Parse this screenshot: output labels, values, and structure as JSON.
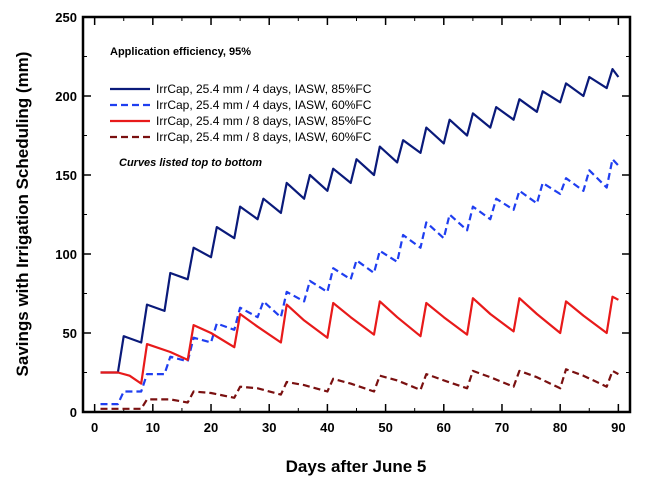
{
  "chart_data": {
    "type": "line",
    "xlabel": "Days after June 5",
    "ylabel": "Savings with Irrigation Scheduling (mm)",
    "xlim": [
      -2,
      92
    ],
    "ylim": [
      0,
      250
    ],
    "xticks": [
      0,
      10,
      20,
      30,
      40,
      50,
      60,
      70,
      80,
      90
    ],
    "yticks": [
      0,
      50,
      100,
      150,
      200,
      250
    ],
    "grid": false,
    "legend_position": "top-left",
    "annotations": [
      {
        "text": "Application efficiency, 95%",
        "style": "bold"
      },
      {
        "text": "Curves listed top to bottom",
        "style": "bold-italic"
      }
    ],
    "series": [
      {
        "name": "IrrCap, 25.4 mm / 4 days, IASW, 85%FC",
        "color": "#0a1a7a",
        "dash": "solid",
        "x": [
          1,
          4,
          5,
          8,
          9,
          12,
          13,
          16,
          17,
          20,
          21,
          24,
          25,
          28,
          29,
          32,
          33,
          36,
          37,
          40,
          41,
          44,
          45,
          48,
          49,
          52,
          53,
          56,
          57,
          60,
          61,
          64,
          65,
          68,
          69,
          72,
          73,
          76,
          77,
          80,
          81,
          84,
          85,
          88,
          89,
          90
        ],
        "y": [
          25,
          25,
          48,
          44,
          68,
          64,
          88,
          84,
          104,
          98,
          117,
          110,
          130,
          122,
          135,
          126,
          145,
          135,
          150,
          140,
          154,
          145,
          160,
          150,
          168,
          158,
          172,
          164,
          180,
          170,
          185,
          175,
          189,
          180,
          193,
          185,
          198,
          190,
          203,
          196,
          208,
          200,
          212,
          205,
          217,
          212
        ]
      },
      {
        "name": "IrrCap, 25.4 mm / 4 days, IASW, 60%FC",
        "color": "#1f3ef0",
        "dash": "dashed",
        "x": [
          1,
          4,
          5,
          8,
          9,
          12,
          13,
          16,
          17,
          20,
          21,
          24,
          25,
          28,
          29,
          32,
          33,
          36,
          37,
          40,
          41,
          44,
          45,
          48,
          49,
          52,
          53,
          56,
          57,
          60,
          61,
          64,
          65,
          68,
          69,
          72,
          73,
          76,
          77,
          80,
          81,
          84,
          85,
          88,
          89,
          90
        ],
        "y": [
          5,
          5,
          13,
          13,
          24,
          24,
          35,
          32,
          47,
          44,
          56,
          52,
          66,
          60,
          70,
          60,
          76,
          70,
          83,
          76,
          91,
          84,
          96,
          88,
          102,
          95,
          112,
          104,
          120,
          110,
          125,
          115,
          130,
          122,
          135,
          128,
          140,
          132,
          145,
          138,
          148,
          140,
          153,
          142,
          160,
          156
        ]
      },
      {
        "name": "IrrCap, 25.4 mm / 8 days, IASW, 85%FC",
        "color": "#e81a1a",
        "dash": "solid",
        "x": [
          1,
          4,
          6,
          8,
          9,
          13,
          16,
          17,
          20,
          24,
          25,
          28,
          32,
          33,
          36,
          40,
          41,
          44,
          48,
          49,
          52,
          56,
          57,
          60,
          64,
          65,
          68,
          72,
          73,
          76,
          80,
          81,
          84,
          88,
          89,
          90
        ],
        "y": [
          25,
          25,
          23,
          18,
          43,
          38,
          33,
          55,
          50,
          41,
          62,
          54,
          44,
          68,
          58,
          47,
          69,
          60,
          49,
          70,
          60,
          48,
          69,
          60,
          49,
          72,
          62,
          51,
          72,
          62,
          50,
          70,
          61,
          50,
          73,
          71
        ]
      },
      {
        "name": "IrrCap, 25.4 mm / 8 days, IASW, 60%FC",
        "color": "#7a1010",
        "dash": "dashed",
        "x": [
          1,
          8,
          9,
          13,
          16,
          17,
          20,
          24,
          25,
          28,
          32,
          33,
          36,
          40,
          41,
          44,
          48,
          49,
          52,
          56,
          57,
          60,
          64,
          65,
          68,
          72,
          73,
          76,
          80,
          81,
          84,
          88,
          89,
          90
        ],
        "y": [
          2,
          2,
          8,
          8,
          6,
          13,
          12,
          9,
          16,
          15,
          11,
          19,
          17,
          13,
          21,
          18,
          13,
          23,
          20,
          14,
          24,
          20,
          15,
          26,
          22,
          16,
          26,
          22,
          15,
          27,
          23,
          16,
          26,
          24
        ]
      }
    ]
  }
}
